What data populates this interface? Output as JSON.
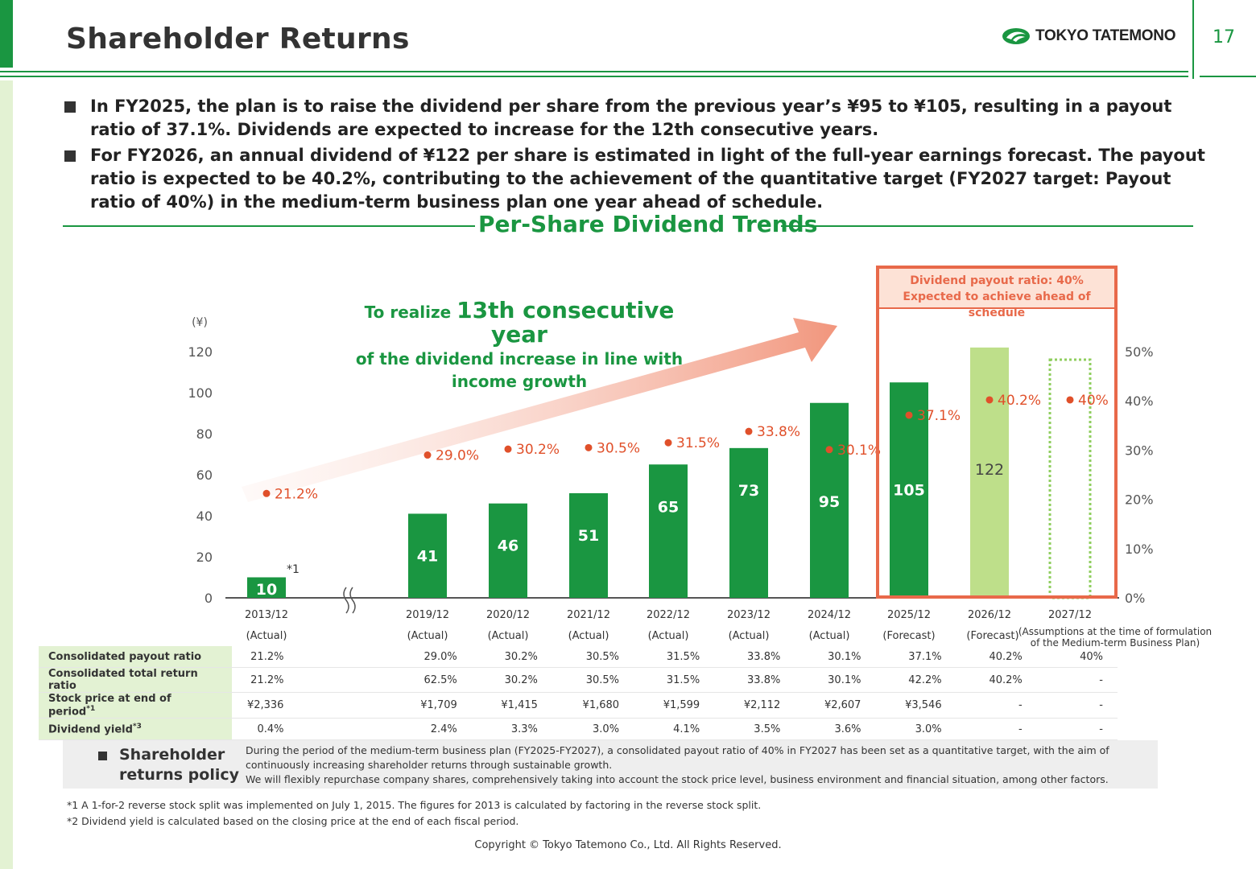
{
  "header": {
    "title": "Shareholder Returns",
    "logo_text": "TOKYO TATEMONO",
    "page_number": "17"
  },
  "bullets": [
    "In FY2025, the plan is to raise the dividend per share from the previous year’s ¥95 to ¥105, resulting in a payout ratio of 37.1%. Dividends are expected to increase for the 12th consecutive years.",
    "For FY2026, an annual dividend of ¥122 per share is estimated in light of the full-year earnings forecast. The payout ratio is expected to be 40.2%, contributing to the achievement of the quantitative target (FY2027 target: Payout ratio of 40%) in the medium-term business plan one year ahead of schedule."
  ],
  "section_title": "Per-Share Dividend Trends",
  "highlight": {
    "line1": "Dividend payout ratio: 40%",
    "line2": "Expected to achieve ahead of schedule"
  },
  "arrow_text": {
    "prefix": "To realize ",
    "big": "13th consecutive year",
    "line2": "of the dividend increase in line with",
    "line3": "income growth"
  },
  "chart_data": {
    "type": "bar",
    "y_unit": "(¥)",
    "ylim": [
      0,
      120
    ],
    "y_ticks": [
      0,
      20,
      40,
      60,
      80,
      100,
      120
    ],
    "y2_ticks": [
      "0%",
      "10%",
      "20%",
      "30%",
      "40%",
      "50%"
    ],
    "y2lim": [
      0,
      50
    ],
    "categories": [
      "2013/12",
      "2019/12",
      "2020/12",
      "2021/12",
      "2022/12",
      "2023/12",
      "2024/12",
      "2025/12",
      "2026/12",
      "2027/12"
    ],
    "sublabels": [
      "(Actual)",
      "(Actual)",
      "(Actual)",
      "(Actual)",
      "(Actual)",
      "(Actual)",
      "(Actual)",
      "(Forecast)",
      "(Forecast)",
      "(Assumptions at the time of formulation of the Medium-term Business Plan)"
    ],
    "series": [
      {
        "name": "Dividend per share",
        "values": [
          10,
          41,
          46,
          51,
          65,
          73,
          95,
          105,
          122,
          null
        ]
      },
      {
        "name": "Consolidated payout ratio",
        "values": [
          21.2,
          29.0,
          30.2,
          30.5,
          31.5,
          33.8,
          30.1,
          37.1,
          40.2,
          40
        ]
      }
    ],
    "payout_labels": [
      "21.2%",
      "29.0%",
      "30.2%",
      "30.5%",
      "31.5%",
      "33.8%",
      "30.1%",
      "37.1%",
      "40.2%",
      "40%"
    ],
    "bar_styles": [
      "actual",
      "actual",
      "actual",
      "actual",
      "actual",
      "actual",
      "actual",
      "actual",
      "forecast",
      "target"
    ],
    "footnote_marker": "*1",
    "colors": {
      "actual": "#1a9641",
      "forecast": "#bedf8a",
      "target": "#8fce5e",
      "ratio": "#e0502a",
      "highlight": "#e8694a"
    }
  },
  "table": {
    "rows": [
      {
        "label": "Consolidated payout ratio",
        "sup": "",
        "values": [
          "21.2%",
          "29.0%",
          "30.2%",
          "30.5%",
          "31.5%",
          "33.8%",
          "30.1%",
          "37.1%",
          "40.2%",
          "40%"
        ]
      },
      {
        "label": "Consolidated total return ratio",
        "sup": "",
        "values": [
          "21.2%",
          "62.5%",
          "30.2%",
          "30.5%",
          "31.5%",
          "33.8%",
          "30.1%",
          "42.2%",
          "40.2%",
          "-"
        ]
      },
      {
        "label": "Stock price at end of period",
        "sup": "*1",
        "values": [
          "¥2,336",
          "¥1,709",
          "¥1,415",
          "¥1,680",
          "¥1,599",
          "¥2,112",
          "¥2,607",
          "¥3,546",
          "-",
          "-"
        ]
      },
      {
        "label": "Dividend yield",
        "sup": "*3",
        "values": [
          "0.4%",
          "2.4%",
          "3.3%",
          "3.0%",
          "4.1%",
          "3.5%",
          "3.6%",
          "3.0%",
          "-",
          "-"
        ]
      }
    ]
  },
  "policy": {
    "label_line1": "Shareholder",
    "label_line2": "returns policy",
    "text1": "During the period of the medium-term business plan (FY2025-FY2027), a consolidated payout ratio of 40% in FY2027 has been set as a quantitative target, with the aim of continuously increasing shareholder returns through sustainable growth.",
    "text2": "We will flexibly repurchase company shares, comprehensively taking into account the stock price level, business environment and financial situation, among other factors."
  },
  "notes": [
    "*1  A 1-for-2 reverse stock split was implemented on July 1, 2015. The figures for 2013 is calculated by factoring in the reverse stock split.",
    "*2  Dividend yield is calculated based on the closing price at the end of each fiscal period."
  ],
  "copyright": "Copyright © Tokyo Tatemono Co., Ltd. All Rights Reserved."
}
